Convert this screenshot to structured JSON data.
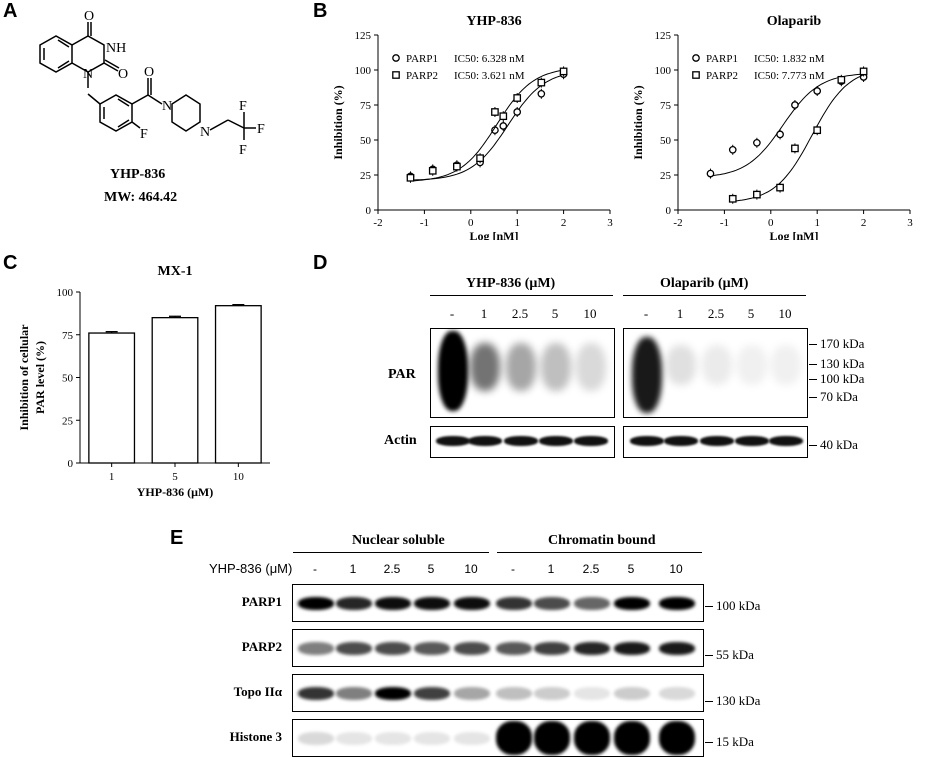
{
  "panels": {
    "A": "A",
    "B": "B",
    "C": "C",
    "D": "D",
    "E": "E"
  },
  "structure": {
    "name": "YHP-836",
    "mw": "MW: 464.42",
    "atoms": {
      "O1": "O",
      "O2": "O",
      "O3": "O",
      "NH": "NH",
      "N1": "N",
      "N2": "N",
      "N3": "N",
      "F1": "F",
      "F2": "F",
      "F3": "F",
      "F4": "F"
    }
  },
  "chart_data": [
    {
      "type": "scatter",
      "title": "YHP-836",
      "xlabel": "Log [nM]",
      "ylabel": "Inhibition (%)",
      "xlim": [
        -2,
        3
      ],
      "ylim": [
        0,
        125
      ],
      "xticks": [
        -2,
        -1,
        0,
        1,
        2,
        3
      ],
      "yticks": [
        0,
        25,
        50,
        75,
        100,
        125
      ],
      "legend": "top-left",
      "series": [
        {
          "name": "PARP1",
          "ic50_label": "IC50: 6.328 nM",
          "marker": "circle",
          "points": [
            [
              -1.3,
              24
            ],
            [
              -0.82,
              29
            ],
            [
              -0.3,
              32
            ],
            [
              0.2,
              34
            ],
            [
              0.52,
              57
            ],
            [
              0.7,
              60
            ],
            [
              1.0,
              70
            ],
            [
              1.52,
              83
            ],
            [
              2.0,
              97
            ]
          ],
          "fit_ic50_log": 0.8
        },
        {
          "name": "PARP2",
          "ic50_label": "IC50: 3.621 nM",
          "marker": "square",
          "points": [
            [
              -1.3,
              23
            ],
            [
              -0.82,
              28
            ],
            [
              -0.3,
              31
            ],
            [
              0.2,
              37
            ],
            [
              0.52,
              70
            ],
            [
              0.7,
              67
            ],
            [
              1.0,
              80
            ],
            [
              1.52,
              91
            ],
            [
              2.0,
              99
            ]
          ],
          "fit_ic50_log": 0.56
        }
      ]
    },
    {
      "type": "scatter",
      "title": "Olaparib",
      "xlabel": "Log [nM]",
      "ylabel": "Inhibition (%)",
      "xlim": [
        -2,
        3
      ],
      "ylim": [
        0,
        125
      ],
      "xticks": [
        -2,
        -1,
        0,
        1,
        2,
        3
      ],
      "yticks": [
        0,
        25,
        50,
        75,
        100,
        125
      ],
      "legend": "top-left",
      "series": [
        {
          "name": "PARP1",
          "ic50_label": "IC50: 1.832 nM",
          "marker": "circle",
          "points": [
            [
              -1.3,
              26
            ],
            [
              -0.82,
              43
            ],
            [
              -0.3,
              48
            ],
            [
              0.2,
              54
            ],
            [
              0.52,
              75
            ],
            [
              1.0,
              85
            ],
            [
              1.52,
              92
            ],
            [
              2.0,
              95
            ]
          ],
          "fit_ic50_log": 0.26
        },
        {
          "name": "PARP2",
          "ic50_label": "IC50: 7.773 nM",
          "marker": "square",
          "points": [
            [
              -0.82,
              8
            ],
            [
              -0.3,
              11
            ],
            [
              0.2,
              16
            ],
            [
              0.52,
              44
            ],
            [
              1.0,
              57
            ],
            [
              1.52,
              93
            ],
            [
              2.0,
              99
            ]
          ],
          "fit_ic50_log": 0.89
        }
      ]
    },
    {
      "type": "bar",
      "title": "MX-1",
      "xlabel": "YHP-836 (μM)",
      "ylabel_line1": "Inhibition of cellular",
      "ylabel_line2": "PAR level (%)",
      "categories": [
        "1",
        "5",
        "10"
      ],
      "values": [
        76,
        85,
        92
      ],
      "errors": [
        0.8,
        0.8,
        0.6
      ],
      "ylim": [
        0,
        100
      ],
      "yticks": [
        0,
        25,
        50,
        75,
        100
      ]
    }
  ],
  "blotD": {
    "group1": "YHP-836 (μM)",
    "group2": "Olaparib (μM)",
    "lanes1": [
      "-",
      "1",
      "2.5",
      "5",
      "10"
    ],
    "lanes2": [
      "-",
      "1",
      "2.5",
      "5",
      "10"
    ],
    "rows": [
      "PAR",
      "Actin"
    ],
    "markers": [
      "170 kDa",
      "130 kDa",
      "100 kDa",
      "70 kDa"
    ],
    "actin_marker": "40 kDa"
  },
  "blotE": {
    "group1": "Nuclear soluble",
    "group2": "Chromatin bound",
    "treatment_label": "YHP-836 (μM)",
    "lanes": [
      "-",
      "1",
      "2.5",
      "5",
      "10",
      "-",
      "1",
      "2.5",
      "5",
      "10"
    ],
    "rows": [
      "PARP1",
      "PARP2",
      "Topo IIα",
      "Histone 3"
    ],
    "markers": [
      "100 kDa",
      "55 kDa",
      "130 kDa",
      "15 kDa"
    ]
  }
}
